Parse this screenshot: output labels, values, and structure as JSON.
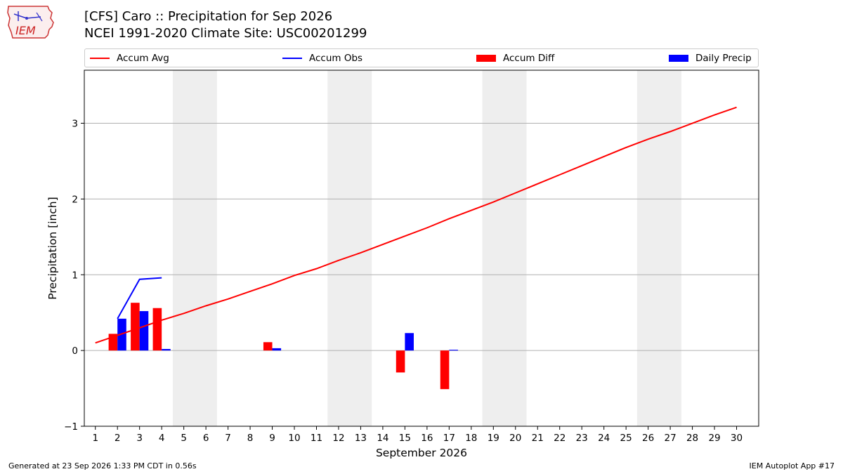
{
  "header": {
    "title_line1": "[CFS] Caro :: Precipitation for Sep 2026",
    "title_line2": "NCEI 1991-2020 Climate Site: USC00201299"
  },
  "logo": {
    "text": "IEM",
    "icon": "iem-logo-icon"
  },
  "legend": {
    "items": [
      {
        "label": "Accum Avg",
        "color": "#ff0000",
        "kind": "line"
      },
      {
        "label": "Accum Obs",
        "color": "#0000ff",
        "kind": "line"
      },
      {
        "label": "Accum Diff",
        "color": "#ff0000",
        "kind": "box"
      },
      {
        "label": "Daily Precip",
        "color": "#0000ff",
        "kind": "box"
      }
    ]
  },
  "footer": {
    "generated": "Generated at 23 Sep 2026 1:33 PM CDT in 0.56s",
    "app": "IEM Autoplot App #17"
  },
  "chart_data": {
    "type": "bar",
    "xlabel": "September 2026",
    "ylabel": "Precipitation [inch]",
    "xlim": [
      0.5,
      31.0
    ],
    "ylim": [
      -1.0,
      3.7
    ],
    "yticks": [
      -1,
      0,
      1,
      2,
      3
    ],
    "ytick_labels": [
      "−1",
      "0",
      "1",
      "2",
      "3"
    ],
    "x": [
      1,
      2,
      3,
      4,
      5,
      6,
      7,
      8,
      9,
      10,
      11,
      12,
      13,
      14,
      15,
      16,
      17,
      18,
      19,
      20,
      21,
      22,
      23,
      24,
      25,
      26,
      27,
      28,
      29,
      30
    ],
    "weekend_days": [
      5,
      6,
      12,
      13,
      19,
      20,
      26,
      27
    ],
    "grid": "horizontal",
    "series": [
      {
        "name": "Accum Avg",
        "kind": "line",
        "color": "#ff0000",
        "x": [
          1,
          2,
          3,
          4,
          5,
          6,
          7,
          8,
          9,
          10,
          11,
          12,
          13,
          14,
          15,
          16,
          17,
          18,
          19,
          20,
          21,
          22,
          23,
          24,
          25,
          26,
          27,
          28,
          29,
          30
        ],
        "values": [
          0.1,
          0.2,
          0.3,
          0.4,
          0.49,
          0.59,
          0.68,
          0.78,
          0.88,
          0.99,
          1.08,
          1.19,
          1.29,
          1.4,
          1.51,
          1.62,
          1.74,
          1.85,
          1.96,
          2.08,
          2.2,
          2.32,
          2.44,
          2.56,
          2.68,
          2.79,
          2.89,
          3.0,
          3.11,
          3.21
        ]
      },
      {
        "name": "Accum Obs",
        "kind": "line",
        "color": "#0000ff",
        "x": [
          2,
          3,
          4
        ],
        "values": [
          0.42,
          0.94,
          0.96
        ]
      },
      {
        "name": "Accum Diff",
        "kind": "bar",
        "color": "#ff0000",
        "offset": "left",
        "x": [
          2,
          3,
          4,
          9,
          15,
          17
        ],
        "values": [
          0.22,
          0.63,
          0.56,
          0.11,
          -0.29,
          -0.51
        ]
      },
      {
        "name": "Daily Precip",
        "kind": "bar",
        "color": "#0000ff",
        "offset": "right",
        "x": [
          2,
          3,
          4,
          9,
          15,
          17
        ],
        "values": [
          0.42,
          0.52,
          0.02,
          0.03,
          0.23,
          0.01
        ]
      }
    ]
  }
}
